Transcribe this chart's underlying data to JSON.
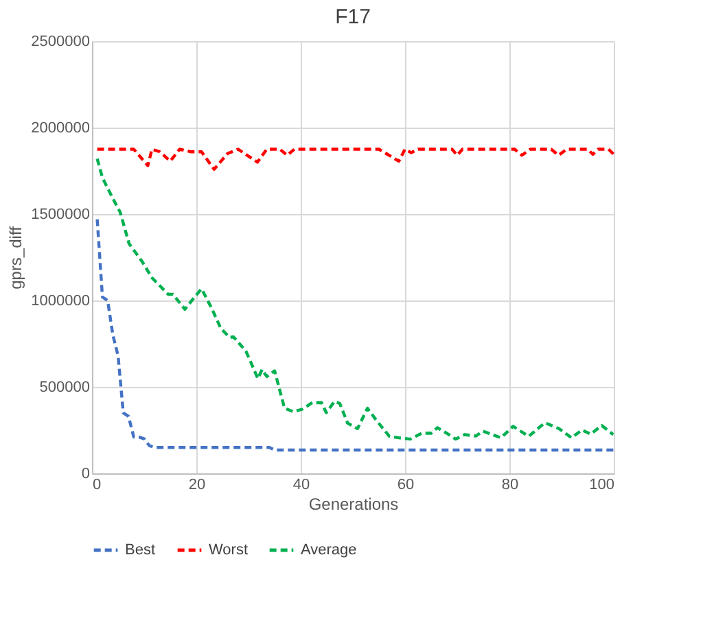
{
  "chart_data": {
    "type": "line",
    "title": "F17",
    "xlabel": "Generations",
    "ylabel": "gprs_diff",
    "xlim": [
      0,
      100
    ],
    "xticks": [
      0,
      20,
      40,
      60,
      80,
      100
    ],
    "ylim": [
      0,
      2500000
    ],
    "yticks": [
      0,
      500000,
      1000000,
      1500000,
      2000000,
      2500000
    ],
    "grid": true,
    "legend": "bottom",
    "line_style": "dashed",
    "marker": "none",
    "series": [
      {
        "name": "Best",
        "color": "#4472c4",
        "x": [
          1,
          2,
          3,
          4,
          5,
          6,
          7,
          8,
          9,
          10,
          11,
          12,
          34,
          35,
          100
        ],
        "values": [
          1470000,
          1020000,
          1000000,
          800000,
          680000,
          350000,
          330000,
          210000,
          210000,
          200000,
          160000,
          150000,
          150000,
          135000,
          135000
        ]
      },
      {
        "name": "Worst",
        "color": "#ff0000",
        "x": [
          1,
          8,
          10.7,
          11.5,
          13,
          15,
          16.8,
          19,
          21,
          23.4,
          26,
          28,
          31.7,
          33.5,
          36,
          37.4,
          38.8,
          55,
          58.8,
          60,
          61.2,
          62.5,
          69,
          70,
          71,
          81,
          82.4,
          84,
          88,
          89.4,
          91,
          95,
          96,
          97,
          99,
          100
        ],
        "values": [
          1875000,
          1875000,
          1780000,
          1875000,
          1860000,
          1806000,
          1875000,
          1860000,
          1860000,
          1759000,
          1850000,
          1875000,
          1800000,
          1875000,
          1875000,
          1840000,
          1875000,
          1875000,
          1806000,
          1875000,
          1855000,
          1875000,
          1875000,
          1840000,
          1875000,
          1875000,
          1840000,
          1875000,
          1875000,
          1840000,
          1875000,
          1875000,
          1845000,
          1875000,
          1875000,
          1845000
        ]
      },
      {
        "name": "Average",
        "color": "#00b050",
        "x": [
          1,
          2,
          3,
          4,
          5.4,
          7.1,
          9.7,
          11.5,
          14.6,
          15.5,
          17.8,
          19.4,
          21,
          22.9,
          24.7,
          26.4,
          27.1,
          29.5,
          31.8,
          32.6,
          33.5,
          35,
          36.9,
          38.6,
          40.4,
          42.2,
          44,
          44.9,
          46.5,
          47.5,
          49,
          50.9,
          52.8,
          54.4,
          57,
          58.8,
          61,
          63.2,
          65,
          66.2,
          68,
          69.7,
          71.4,
          73.6,
          74.9,
          76.7,
          78.4,
          80.7,
          83.7,
          86.8,
          89.5,
          91.9,
          93.9,
          95.6,
          97.7,
          99.9
        ],
        "values": [
          1820000,
          1710000,
          1650000,
          1590000,
          1511000,
          1329000,
          1221000,
          1131000,
          1036000,
          1036000,
          949000,
          1010000,
          1068000,
          957000,
          838000,
          786000,
          790000,
          707000,
          548000,
          601000,
          560000,
          593000,
          377000,
          356000,
          372000,
          409000,
          409000,
          351000,
          417000,
          404000,
          290000,
          259000,
          377000,
          311000,
          214000,
          206000,
          198000,
          232000,
          232000,
          264000,
          232000,
          198000,
          224000,
          216000,
          245000,
          224000,
          206000,
          272000,
          214000,
          293000,
          259000,
          206000,
          251000,
          227000,
          277000,
          224000
        ]
      }
    ]
  }
}
